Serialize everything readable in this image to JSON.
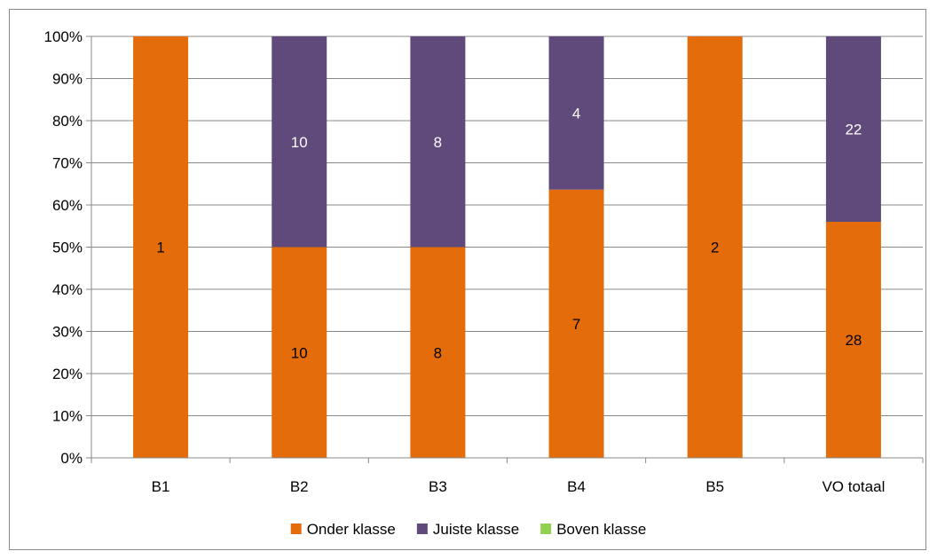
{
  "chart_data": {
    "type": "bar",
    "stacked": "percent",
    "categories": [
      "B1",
      "B2",
      "B3",
      "B4",
      "B5",
      "VO totaal"
    ],
    "series": [
      {
        "name": "Onder klasse",
        "values": [
          1,
          10,
          8,
          7,
          2,
          28
        ],
        "color": "#E46C0A",
        "label_color": "#000000"
      },
      {
        "name": "Juiste klasse",
        "values": [
          0,
          10,
          8,
          4,
          0,
          22
        ],
        "color": "#604A7B",
        "label_color": "#FFFFFF"
      },
      {
        "name": "Boven klasse",
        "values": [
          0,
          0,
          0,
          0,
          0,
          0
        ],
        "color": "#92D050",
        "label_color": "#000000"
      }
    ],
    "y_ticks": [
      "0%",
      "10%",
      "20%",
      "30%",
      "40%",
      "50%",
      "60%",
      "70%",
      "80%",
      "90%",
      "100%"
    ],
    "ylim": [
      0,
      100
    ],
    "grid": true,
    "grid_color": "#888888",
    "legend_position": "bottom",
    "title": "",
    "xlabel": "",
    "ylabel": ""
  }
}
